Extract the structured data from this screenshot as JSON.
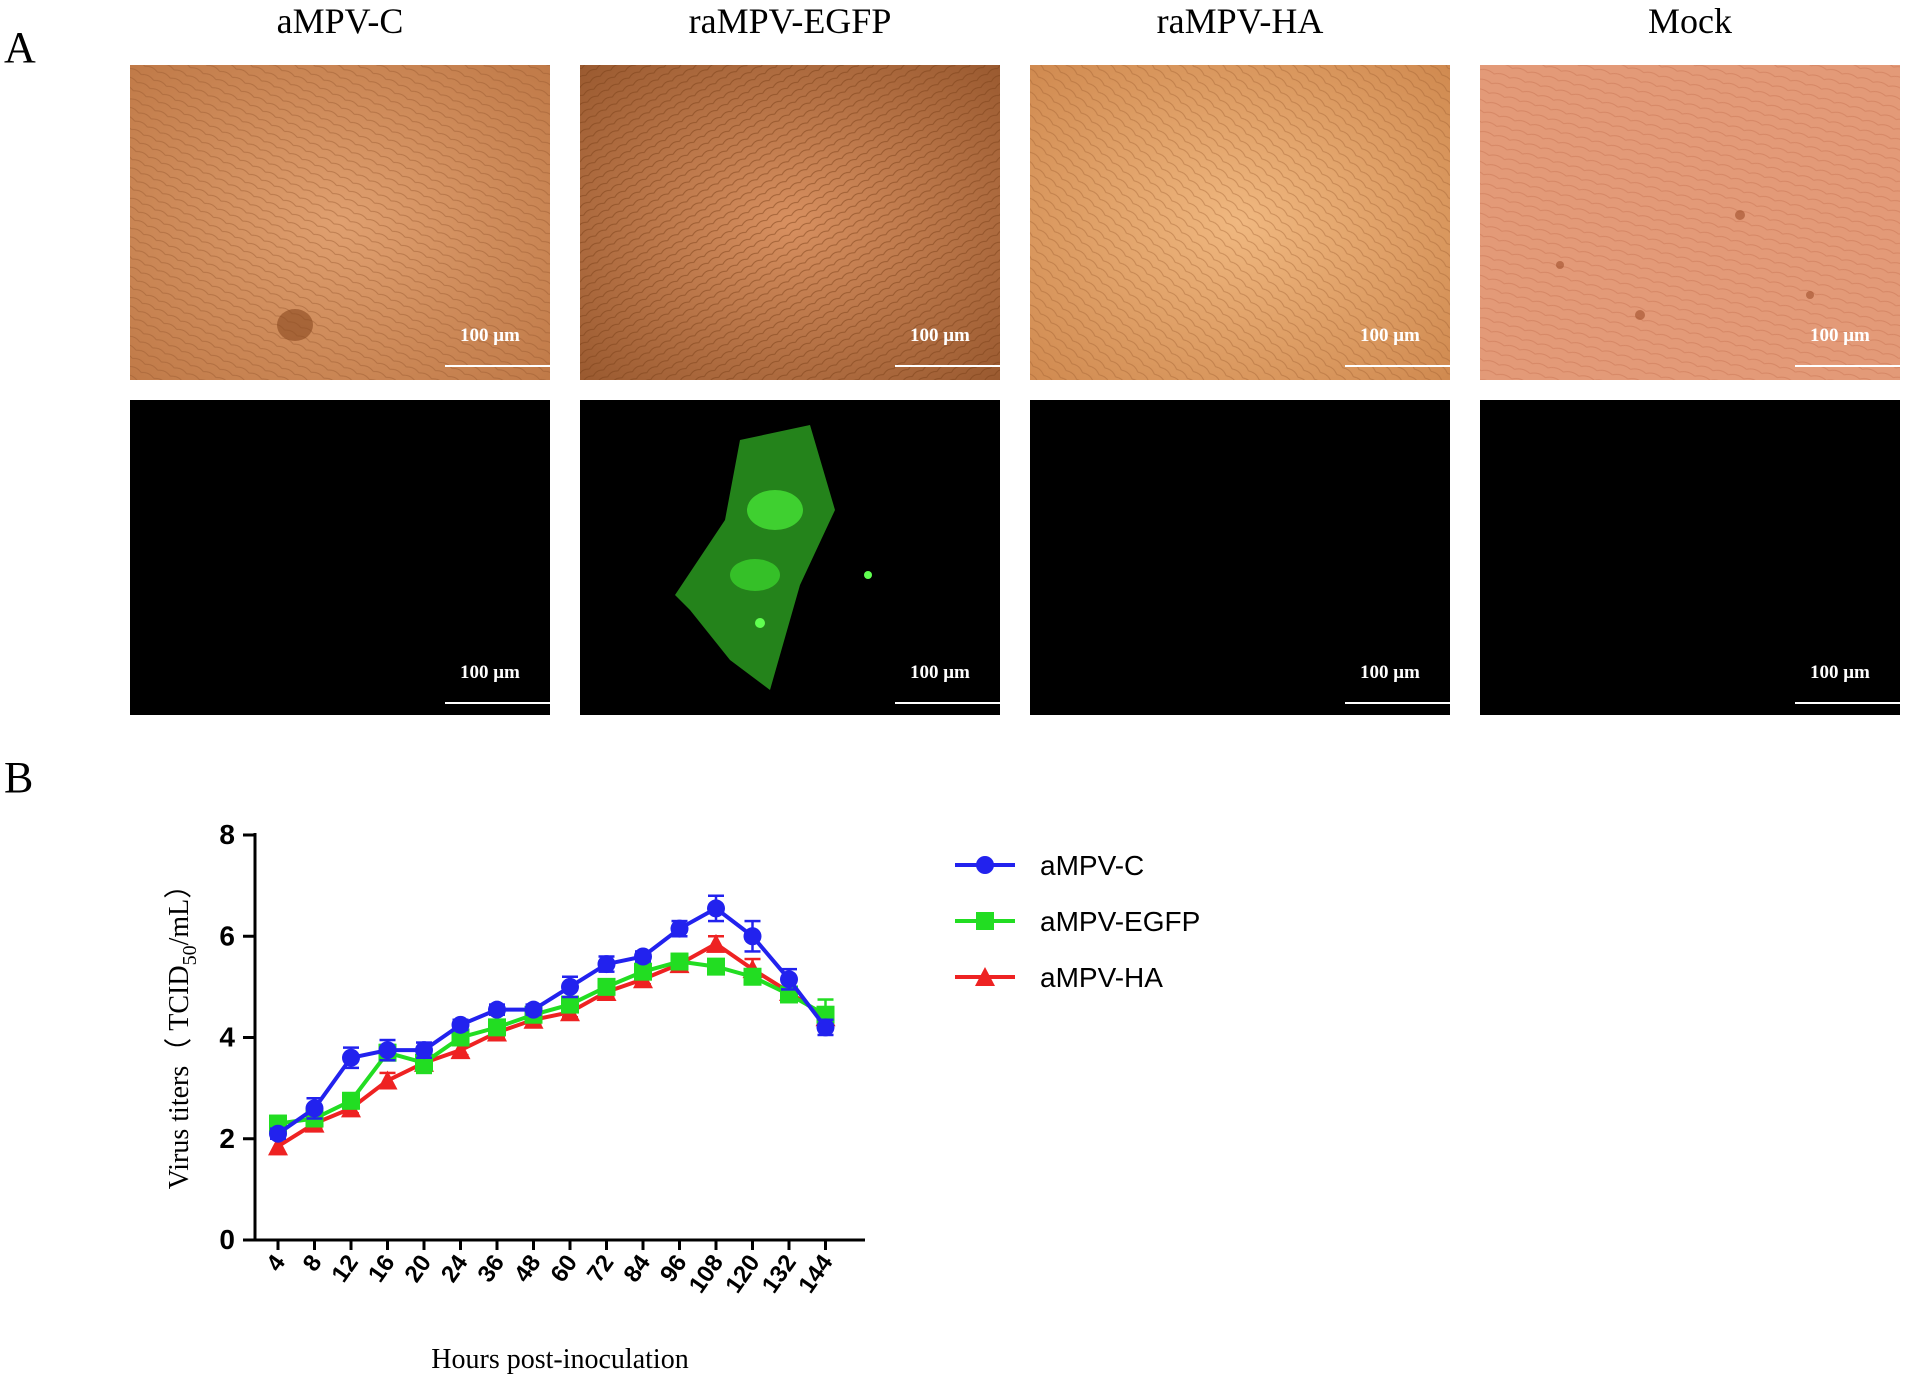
{
  "panel_a": {
    "letter": "A",
    "columns": [
      {
        "title": "aMPV-C",
        "scale_top": "100 μm",
        "scale_bottom": "100 μm"
      },
      {
        "title": "raMPV-EGFP",
        "scale_top": "100 μm",
        "scale_bottom": "100 μm"
      },
      {
        "title": "raMPV-HA",
        "scale_top": "100 μm",
        "scale_bottom": "100 μm"
      },
      {
        "title": "Mock",
        "scale_top": "100 μm",
        "scale_bottom": "100 μm"
      }
    ]
  },
  "panel_b": {
    "letter": "B"
  },
  "colors": {
    "aMPV-C": "#2222ee",
    "aMPV-EGFP": "#22dd22",
    "aMPV-HA": "#ee2222"
  },
  "chart_data": {
    "type": "line",
    "xlabel": "Hours post-inoculation",
    "ylabel_prefix": "Virus titers（ TCID",
    "ylabel_sub": "50",
    "ylabel_suffix": "/mL）",
    "ylim": [
      0,
      8
    ],
    "yticks": [
      "0",
      "2",
      "4",
      "6",
      "8"
    ],
    "categories": [
      "4",
      "8",
      "12",
      "16",
      "20",
      "24",
      "36",
      "48",
      "60",
      "72",
      "84",
      "96",
      "108",
      "120",
      "132",
      "144"
    ],
    "legend_position": "right",
    "series": [
      {
        "name": "aMPV-C",
        "marker": "circle",
        "values": [
          2.1,
          2.6,
          3.6,
          3.75,
          3.75,
          4.25,
          4.55,
          4.55,
          5.0,
          5.45,
          5.6,
          6.15,
          6.55,
          6.0,
          5.15,
          4.2
        ],
        "errors": [
          0.1,
          0.2,
          0.2,
          0.2,
          0.15,
          0.1,
          0.1,
          0.1,
          0.2,
          0.15,
          0.1,
          0.15,
          0.25,
          0.3,
          0.2,
          0.15
        ]
      },
      {
        "name": "aMPV-EGFP",
        "marker": "square",
        "values": [
          2.3,
          2.4,
          2.75,
          3.7,
          3.5,
          4.0,
          4.2,
          4.45,
          4.65,
          5.0,
          5.3,
          5.5,
          5.4,
          5.2,
          4.85,
          4.45
        ],
        "errors": [
          0.15,
          0.1,
          0.15,
          0.15,
          0.2,
          0.1,
          0.1,
          0.1,
          0.15,
          0.1,
          0.1,
          0.15,
          0.1,
          0.1,
          0.1,
          0.3
        ]
      },
      {
        "name": "aMPV-HA",
        "marker": "triangle",
        "values": [
          1.85,
          2.3,
          2.6,
          3.15,
          3.5,
          3.75,
          4.1,
          4.35,
          4.5,
          4.9,
          5.15,
          5.45,
          5.85,
          5.35,
          4.9,
          4.4
        ],
        "errors": [
          0.15,
          0.1,
          0.1,
          0.15,
          0.15,
          0.1,
          0.1,
          0.1,
          0.1,
          0.1,
          0.1,
          0.1,
          0.15,
          0.2,
          0.1,
          0.15
        ]
      }
    ]
  }
}
